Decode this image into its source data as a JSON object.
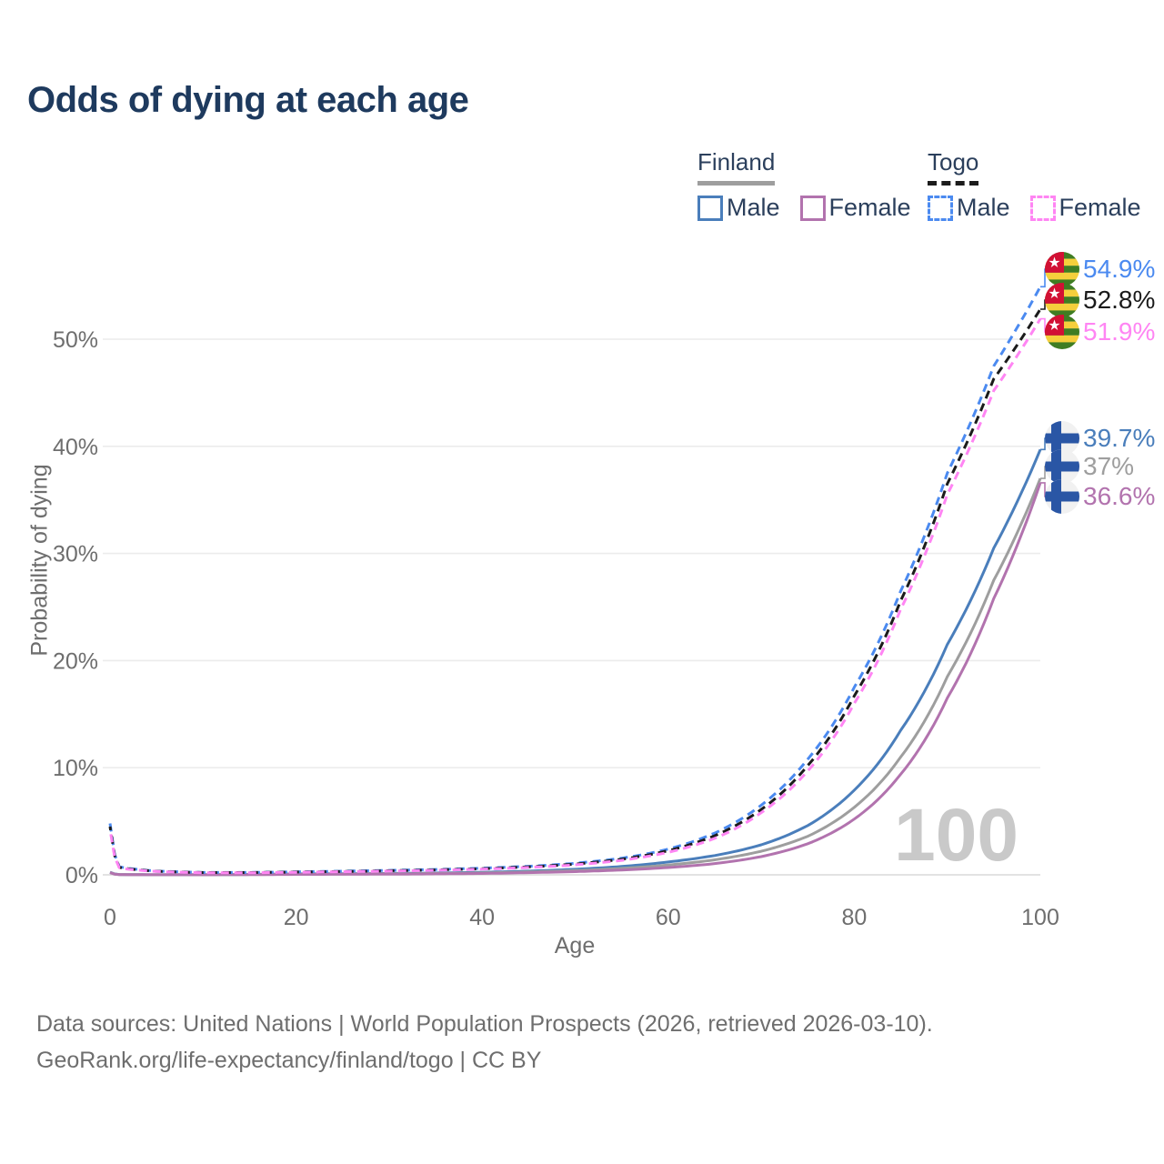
{
  "title": "Odds of dying at each age",
  "legend": {
    "finland": {
      "label": "Finland",
      "male": "Male",
      "female": "Female"
    },
    "togo": {
      "label": "Togo",
      "male": "Male",
      "female": "Female"
    }
  },
  "watermark": "100",
  "footer": {
    "line1": "Data sources: United Nations | World Population Prospects (2026, retrieved 2026-03-10).",
    "line2": "GeoRank.org/life-expectancy/finland/togo | CC BY"
  },
  "colors": {
    "finland_male": "#4a7ebb",
    "finland_total": "#9e9e9e",
    "finland_female": "#b273ae",
    "togo_male": "#4b8af0",
    "togo_total": "#1b1b1b",
    "togo_female": "#ff85f3",
    "grid": "#ececec",
    "baseline": "#d9d9d9",
    "axis_text": "#6e6e6e",
    "watermark": "#c9c9c9",
    "title_text": "#1e3a5e"
  },
  "chart_data": {
    "type": "line",
    "title": "Odds of dying at each age",
    "xlabel": "Age",
    "ylabel": "Probability of dying",
    "xlim": [
      0,
      100
    ],
    "ylim": [
      0,
      56
    ],
    "x_ticks": [
      0,
      20,
      40,
      60,
      80,
      100
    ],
    "y_ticks": [
      "0%",
      "10%",
      "20%",
      "30%",
      "40%",
      "50%"
    ],
    "grid": "horizontal-only",
    "legend_position": "top-right",
    "x": [
      0,
      1,
      2,
      5,
      10,
      15,
      20,
      25,
      30,
      35,
      40,
      45,
      50,
      55,
      60,
      65,
      70,
      75,
      80,
      85,
      90,
      95,
      100
    ],
    "series": [
      {
        "key": "finland-male",
        "name": "Finland Male",
        "country": "finland",
        "style": "solid",
        "color": "#4a7ebb",
        "end_label": "39.7%",
        "end_value": 39.7,
        "values": [
          0.25,
          0.03,
          0.02,
          0.01,
          0.01,
          0.04,
          0.09,
          0.11,
          0.13,
          0.17,
          0.24,
          0.35,
          0.52,
          0.78,
          1.2,
          1.8,
          2.8,
          4.6,
          7.9,
          13.5,
          21.5,
          30.5,
          39.7
        ]
      },
      {
        "key": "finland-total",
        "name": "Finland Total",
        "country": "finland",
        "style": "solid",
        "color": "#9e9e9e",
        "end_label": "37%",
        "end_value": 37.0,
        "values": [
          0.22,
          0.02,
          0.02,
          0.01,
          0.01,
          0.03,
          0.06,
          0.08,
          0.1,
          0.13,
          0.18,
          0.27,
          0.4,
          0.6,
          0.92,
          1.4,
          2.2,
          3.6,
          6.3,
          11.0,
          18.5,
          27.5,
          37.0
        ]
      },
      {
        "key": "finland-female",
        "name": "Finland Female",
        "country": "finland",
        "style": "solid",
        "color": "#b273ae",
        "end_label": "36.6%",
        "end_value": 36.6,
        "values": [
          0.2,
          0.02,
          0.01,
          0.01,
          0.01,
          0.02,
          0.04,
          0.05,
          0.06,
          0.09,
          0.13,
          0.2,
          0.3,
          0.45,
          0.68,
          1.05,
          1.7,
          2.9,
          5.2,
          9.4,
          16.5,
          25.8,
          36.6
        ]
      },
      {
        "key": "togo-male",
        "name": "Togo Male",
        "country": "togo",
        "style": "dashed",
        "color": "#4b8af0",
        "end_label": "54.9%",
        "end_value": 54.9,
        "values": [
          4.8,
          0.75,
          0.6,
          0.35,
          0.22,
          0.22,
          0.28,
          0.34,
          0.42,
          0.5,
          0.62,
          0.8,
          1.08,
          1.55,
          2.4,
          3.9,
          6.5,
          10.8,
          17.5,
          26.5,
          37.5,
          47.5,
          54.9
        ]
      },
      {
        "key": "togo-total",
        "name": "Togo Total",
        "country": "togo",
        "style": "dashed",
        "color": "#1b1b1b",
        "end_label": "52.8%",
        "end_value": 52.8,
        "values": [
          4.5,
          0.7,
          0.56,
          0.33,
          0.21,
          0.21,
          0.26,
          0.31,
          0.38,
          0.46,
          0.57,
          0.74,
          1.0,
          1.45,
          2.25,
          3.65,
          6.1,
          10.2,
          16.7,
          25.6,
          36.5,
          46.3,
          52.8
        ]
      },
      {
        "key": "togo-female",
        "name": "Togo Female",
        "country": "togo",
        "style": "dashed",
        "color": "#ff85f3",
        "end_label": "51.9%",
        "end_value": 51.9,
        "values": [
          4.2,
          0.66,
          0.52,
          0.31,
          0.19,
          0.19,
          0.24,
          0.29,
          0.35,
          0.42,
          0.53,
          0.69,
          0.93,
          1.35,
          2.1,
          3.4,
          5.8,
          9.7,
          16.0,
          24.8,
          35.5,
          45.2,
          51.9
        ]
      }
    ]
  }
}
